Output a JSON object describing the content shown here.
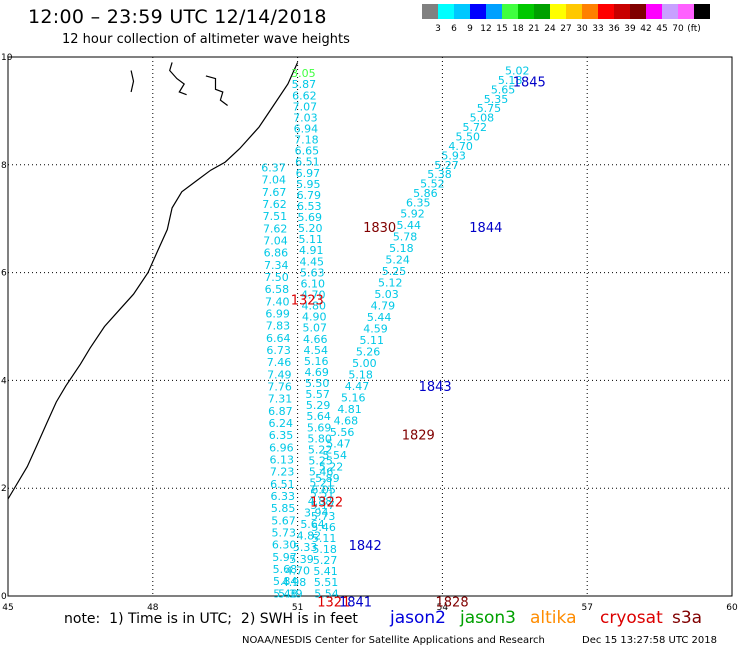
{
  "header": {
    "title": "12:00 – 23:59 UTC 12/14/2018",
    "subtitle": "12 hour collection of altimeter wave heights"
  },
  "colorbar": {
    "colors": [
      "#808080",
      "#00ffff",
      "#00c8ff",
      "#0000ff",
      "#00a0ff",
      "#40ff40",
      "#00c800",
      "#00a000",
      "#ffff00",
      "#ffc800",
      "#ff8000",
      "#ff0000",
      "#c80000",
      "#800000",
      "#ff00ff",
      "#c8a0ff",
      "#ff60ff",
      "#000000"
    ],
    "labels": [
      "3",
      "6",
      "9",
      "12",
      "15",
      "18",
      "21",
      "24",
      "27",
      "30",
      "33",
      "36",
      "39",
      "42",
      "45",
      "70",
      "(ft)"
    ]
  },
  "chart_data": {
    "type": "scatter",
    "title": "12 hour collection of altimeter wave heights",
    "xlim": [
      45,
      60
    ],
    "ylim": [
      0,
      10
    ],
    "x_ticks": [
      "45",
      "48",
      "51",
      "54",
      "57",
      "60"
    ],
    "y_ticks": [
      "0",
      "2",
      "4",
      "6",
      "8",
      "10"
    ],
    "grid": true,
    "coastline": [
      [
        51.0,
        9.9
      ],
      [
        50.8,
        9.5
      ],
      [
        50.5,
        9.1
      ],
      [
        50.2,
        8.7
      ],
      [
        49.8,
        8.3
      ],
      [
        49.5,
        8.05
      ],
      [
        49.2,
        7.9
      ],
      [
        48.9,
        7.7
      ],
      [
        48.6,
        7.5
      ],
      [
        48.4,
        7.2
      ],
      [
        48.3,
        6.8
      ],
      [
        48.1,
        6.4
      ],
      [
        47.9,
        6.0
      ],
      [
        47.6,
        5.6
      ],
      [
        47.3,
        5.3
      ],
      [
        47.0,
        5.0
      ],
      [
        46.7,
        4.6
      ],
      [
        46.5,
        4.3
      ],
      [
        46.2,
        3.9
      ],
      [
        46.0,
        3.6
      ],
      [
        45.8,
        3.2
      ],
      [
        45.6,
        2.8
      ],
      [
        45.4,
        2.4
      ],
      [
        45.0,
        1.8
      ]
    ],
    "islands": [
      [
        [
          47.55,
          9.75
        ],
        [
          47.6,
          9.55
        ],
        [
          47.55,
          9.35
        ]
      ],
      [
        [
          48.4,
          9.9
        ],
        [
          48.35,
          9.75
        ],
        [
          48.5,
          9.6
        ],
        [
          48.65,
          9.5
        ],
        [
          48.55,
          9.35
        ],
        [
          48.7,
          9.3
        ]
      ],
      [
        [
          49.1,
          9.65
        ],
        [
          49.3,
          9.6
        ],
        [
          49.3,
          9.4
        ],
        [
          49.45,
          9.35
        ],
        [
          49.4,
          9.2
        ],
        [
          49.55,
          9.1
        ]
      ]
    ],
    "tracks": [
      {
        "name": "1830",
        "color": "#00c8e6",
        "label_color": "#800000",
        "label_x": 52.7,
        "label_y": 6.85,
        "x_start": 51.12,
        "y_start": 9.7,
        "x_end": 51.6,
        "y_end": 0.05,
        "values": [
          "3.05",
          "5.87",
          "6.62",
          "7.07",
          "7.03",
          "6.94",
          "7.18",
          "6.65",
          "6.51",
          "6.97",
          "5.95",
          "6.79",
          "6.53",
          "5.69",
          "5.20",
          "5.11",
          "4.91",
          "4.45",
          "5.63",
          "6.10",
          "4.70",
          "4.80",
          "4.90",
          "5.07",
          "4.66",
          "4.54",
          "5.16",
          "4.69",
          "5.50",
          "5.57",
          "5.29",
          "5.64",
          "5.69",
          "5.80",
          "5.22",
          "5.25",
          "5.46",
          "5.21",
          "5.51",
          "5.17",
          "5.73",
          "5.46",
          "5.11",
          "5.18",
          "5.27",
          "5.41",
          "5.51",
          "5.54"
        ],
        "value_colors": {
          "0": "#40ff40"
        }
      },
      {
        "name": "1843",
        "color": "#00c8e6",
        "label_color": "#0000c8",
        "label_x": 53.85,
        "label_y": 3.9,
        "x_start": 53.38,
        "y_start": 7.1,
        "x_end": 50.85,
        "y_end": 0.05,
        "values": [
          "5.92",
          "5.44",
          "5.78",
          "5.18",
          "5.24",
          "5.25",
          "5.12",
          "5.03",
          "4.79",
          "5.44",
          "4.59",
          "5.11",
          "5.26",
          "5.00",
          "5.18",
          "4.47",
          "5.16",
          "4.81",
          "4.68",
          "5.56",
          "5.47",
          "5.54",
          "5.22",
          "5.89",
          "6.05",
          "4.88",
          "3.94",
          "5.64",
          "4.82",
          "5.33",
          "5.39",
          "4.70",
          "4.98",
          "5.39"
        ]
      },
      {
        "name": "1845",
        "color": "#00c8e6",
        "label_color": "#0000c8",
        "label_x": 55.8,
        "label_y": 9.55,
        "x_start": 55.55,
        "y_start": 9.75,
        "x_end": 53.5,
        "y_end": 7.3,
        "values": [
          "5.02",
          "5.18",
          "5.65",
          "5.35",
          "5.75",
          "5.08",
          "5.72",
          "5.50",
          "4.70",
          "5.93",
          "5.27",
          "5.38",
          "5.52",
          "5.86",
          "6.35"
        ]
      },
      {
        "name": "1323",
        "color": "#00c8e6",
        "label_color": "#dc0000",
        "label_x": 51.2,
        "label_y": 5.5,
        "x_start": 50.5,
        "y_start": 7.95,
        "x_end": 50.75,
        "y_end": 0.05,
        "values": [
          "6.37",
          "7.04",
          "7.67",
          "7.62",
          "7.51",
          "7.62",
          "7.04",
          "6.86",
          "7.34",
          "7.50",
          "6.58",
          "7.40",
          "6.99",
          "7.83",
          "6.64",
          "6.73",
          "7.46",
          "7.49",
          "7.76",
          "7.31",
          "6.87",
          "6.24",
          "6.35",
          "6.96",
          "6.13",
          "7.23",
          "6.51",
          "6.33",
          "5.85",
          "5.67",
          "5.73",
          "6.30",
          "5.97",
          "5.68",
          "5.84",
          "5.48"
        ]
      }
    ],
    "labels": [
      {
        "text": "1844",
        "x": 54.9,
        "y": 6.85,
        "color": "#0000c8"
      },
      {
        "text": "1829",
        "x": 53.5,
        "y": 3.0,
        "color": "#800000"
      },
      {
        "text": "1322",
        "x": 51.6,
        "y": 1.75,
        "color": "#dc0000"
      },
      {
        "text": "1842",
        "x": 52.4,
        "y": 0.95,
        "color": "#0000c8"
      },
      {
        "text": "1321",
        "x": 51.75,
        "y": -0.1,
        "color": "#dc0000"
      },
      {
        "text": "1841",
        "x": 52.2,
        "y": -0.1,
        "color": "#0000c8"
      },
      {
        "text": "1828",
        "x": 54.2,
        "y": -0.1,
        "color": "#800000"
      }
    ]
  },
  "footer": {
    "note": "note:  1) Time is in UTC;  2) SWH is in feet",
    "satellites": [
      {
        "name": "jason2",
        "color": "#0000dc"
      },
      {
        "name": "jason3",
        "color": "#00a000"
      },
      {
        "name": "altika",
        "color": "#ff8c00"
      },
      {
        "name": "cryosat",
        "color": "#dc0000"
      },
      {
        "name": "s3a",
        "color": "#800000"
      }
    ],
    "credit": "NOAA/NESDIS Center for Satellite Applications and Research",
    "timestamp": "Dec 15 13:27:58 UTC 2018"
  }
}
